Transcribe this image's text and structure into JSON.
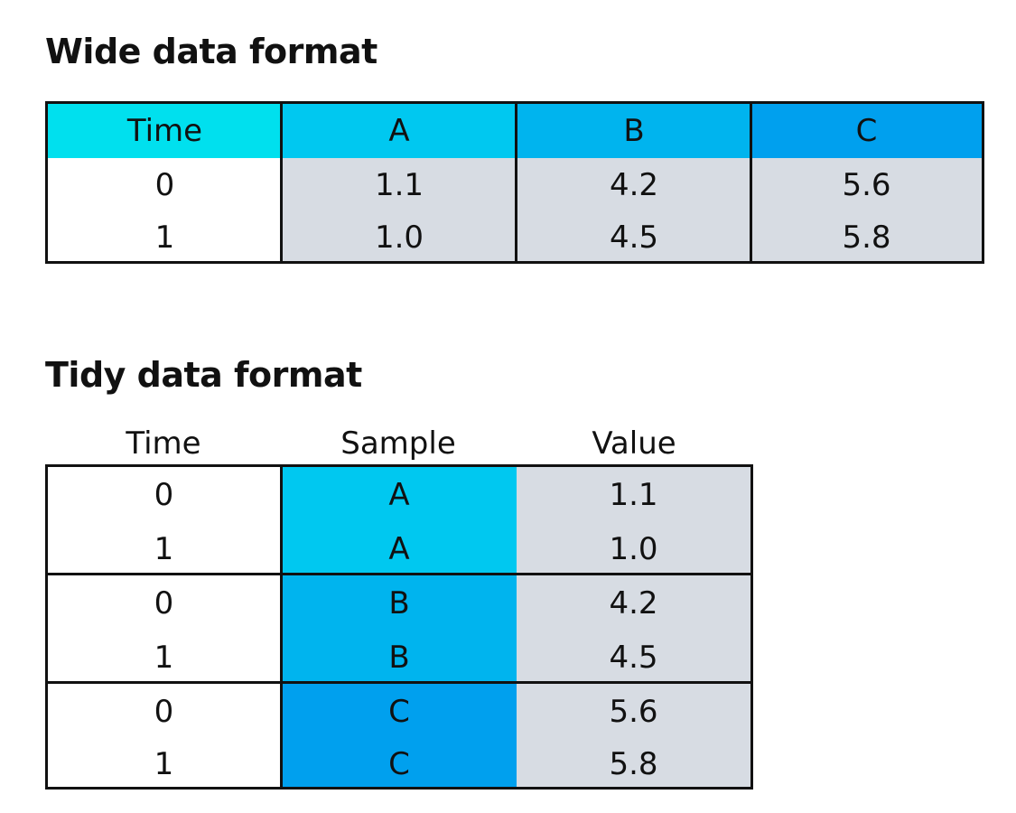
{
  "wide": {
    "title": "Wide data format",
    "header": [
      "Time",
      "A",
      "B",
      "C"
    ],
    "rows": [
      [
        "0",
        "1.1",
        "4.2",
        "5.6"
      ],
      [
        "1",
        "1.0",
        "4.5",
        "5.8"
      ]
    ]
  },
  "tidy": {
    "title": "Tidy data format",
    "header": [
      "Time",
      "Sample",
      "Value"
    ],
    "rows": [
      [
        "0",
        "A",
        "1.1"
      ],
      [
        "1",
        "A",
        "1.0"
      ],
      [
        "0",
        "B",
        "4.2"
      ],
      [
        "1",
        "B",
        "4.5"
      ],
      [
        "0",
        "C",
        "5.6"
      ],
      [
        "1",
        "C",
        "5.8"
      ]
    ]
  },
  "colors": {
    "time_header": "#00E0EE",
    "sample_a": "#00C8F0",
    "sample_b": "#00B4EE",
    "sample_c": "#00A0EE",
    "value_cell": "#D7DCE3",
    "border": "#111111"
  }
}
